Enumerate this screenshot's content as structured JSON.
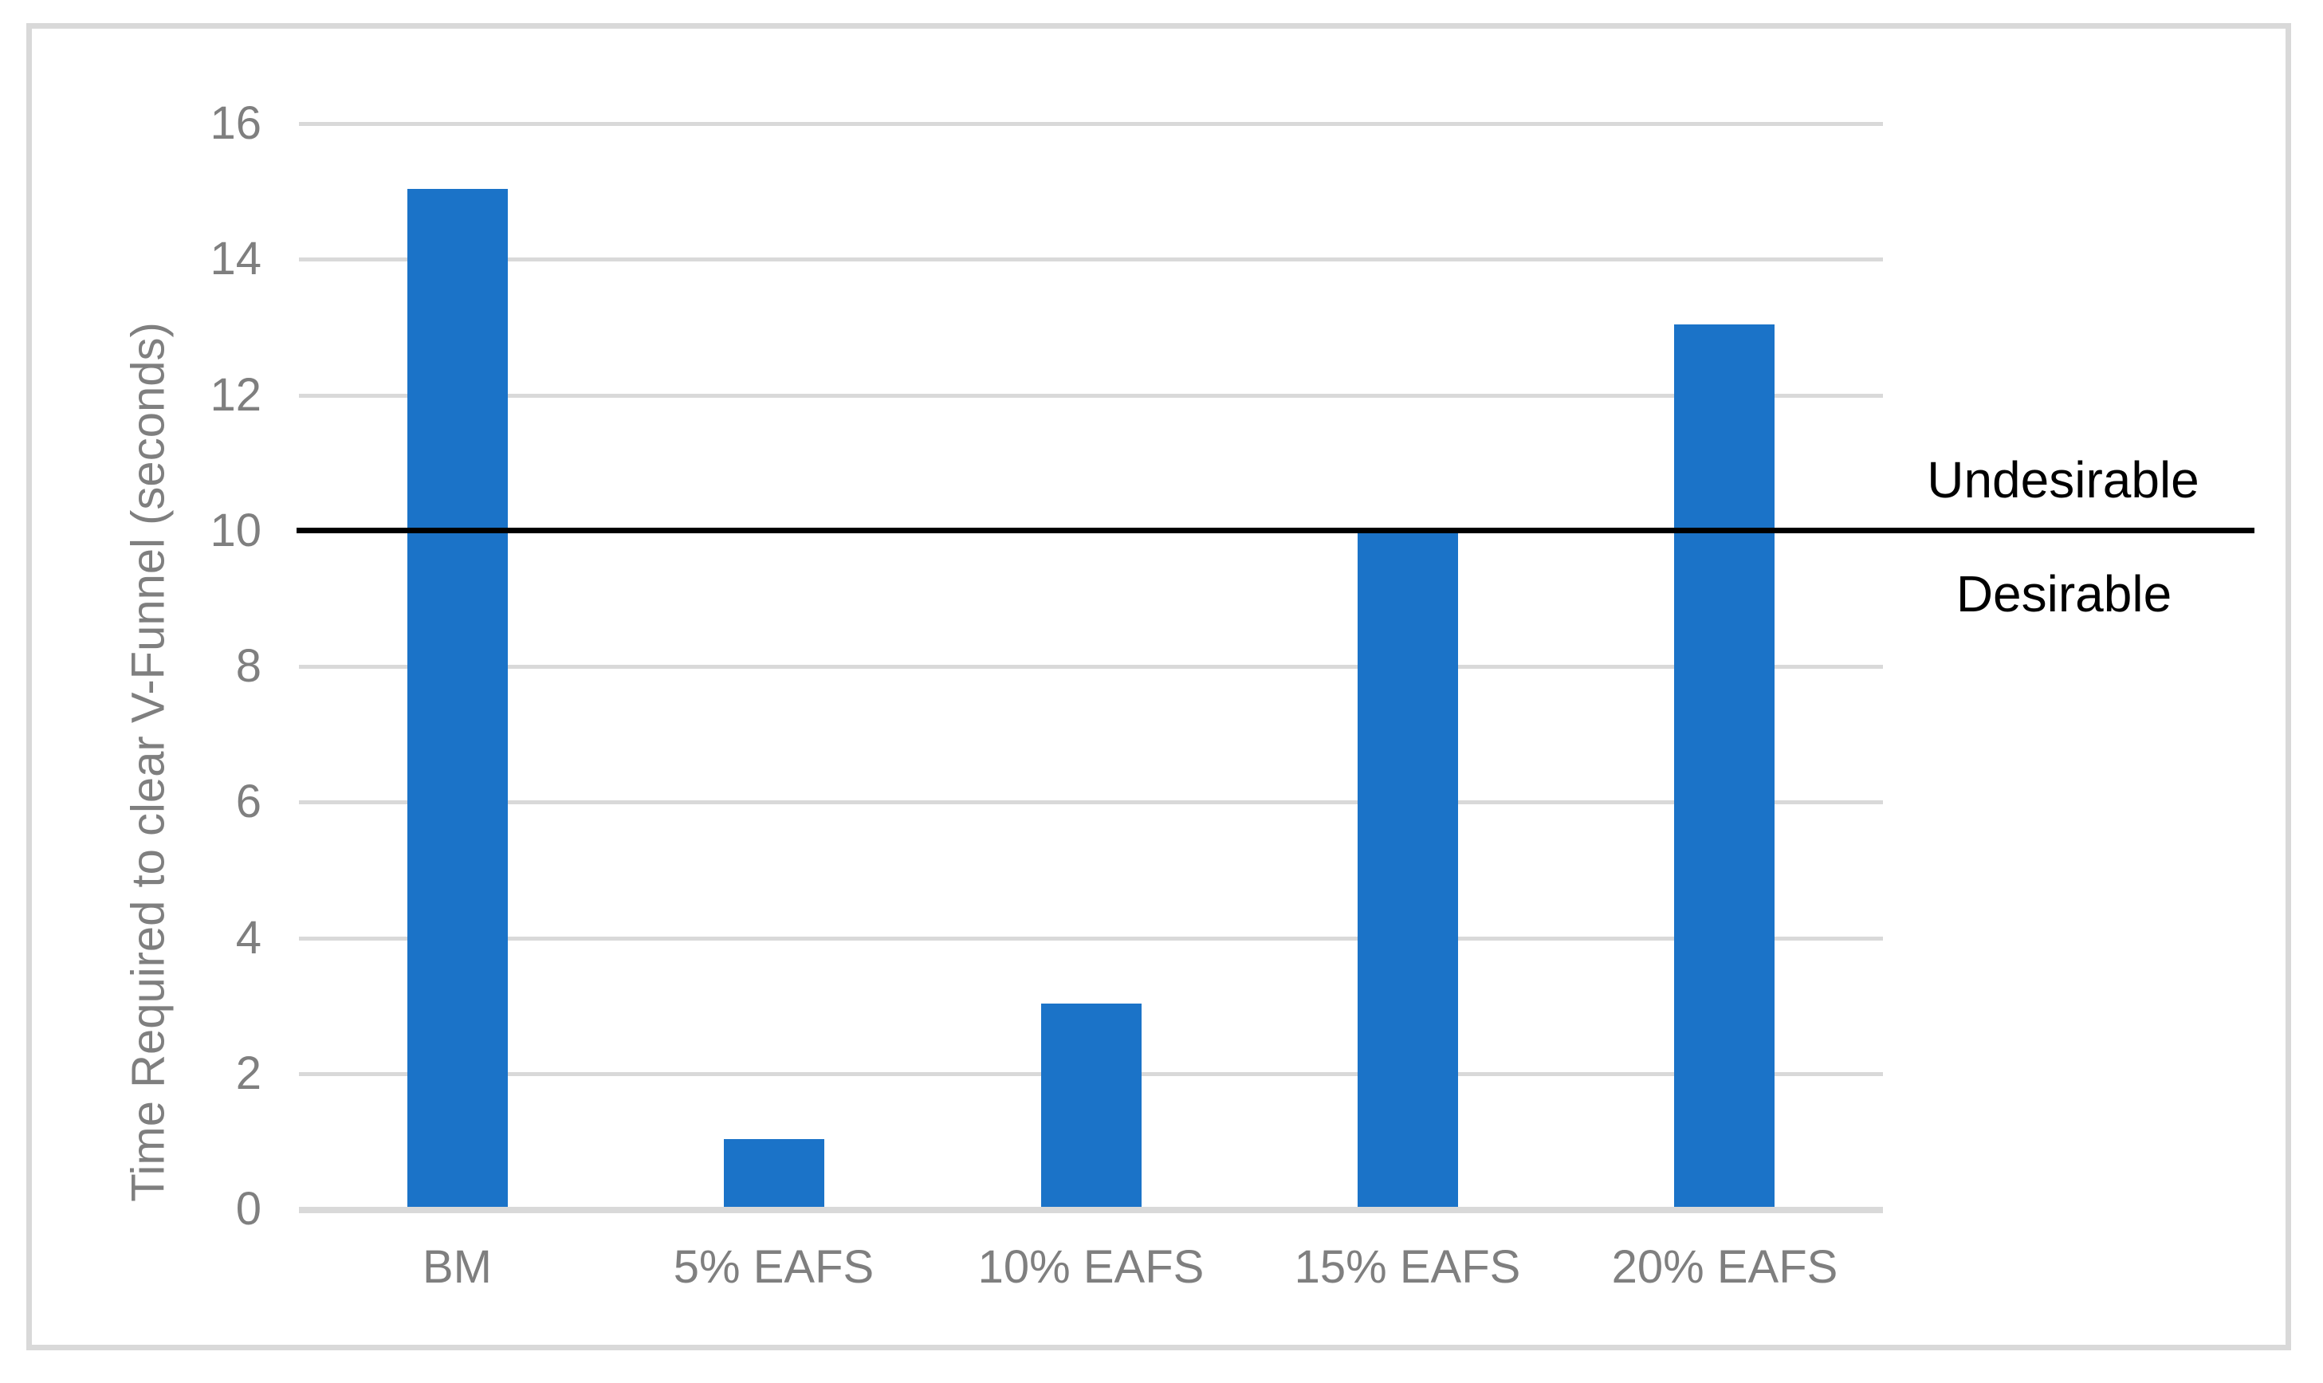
{
  "chart_data": {
    "type": "bar",
    "categories": [
      "BM",
      "5% EAFS",
      "10% EAFS",
      "15% EAFS",
      "20% EAFS"
    ],
    "values": [
      15,
      1,
      3,
      10,
      13
    ],
    "title": "",
    "xlabel": "",
    "ylabel": "Time Required to clear V-Funnel (seconds)",
    "ylim": [
      0,
      16
    ],
    "yticks": [
      0,
      2,
      4,
      6,
      8,
      10,
      12,
      14,
      16
    ],
    "grid": "horizontal",
    "legend": "none",
    "bar_color": "#1b73c8",
    "gridline_color": "#d9d9d9",
    "axis_line_color": "#d9d9d9",
    "axis_text_color": "#7f7f7f",
    "threshold": {
      "value": 10,
      "line_color": "#000000",
      "label_above": "Undesirable",
      "label_below": "Desirable"
    }
  }
}
